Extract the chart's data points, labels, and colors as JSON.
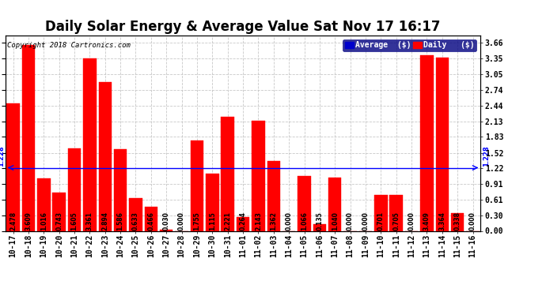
{
  "title": "Daily Solar Energy & Average Value Sat Nov 17 16:17",
  "copyright": "Copyright 2018 Cartronics.com",
  "categories": [
    "10-17",
    "10-18",
    "10-19",
    "10-20",
    "10-21",
    "10-22",
    "10-23",
    "10-24",
    "10-25",
    "10-26",
    "10-27",
    "10-28",
    "10-29",
    "10-30",
    "10-31",
    "11-01",
    "11-02",
    "11-03",
    "11-04",
    "11-05",
    "11-06",
    "11-07",
    "11-08",
    "11-09",
    "11-10",
    "11-11",
    "11-12",
    "11-13",
    "11-14",
    "11-15",
    "11-16"
  ],
  "values": [
    2.478,
    3.609,
    1.016,
    0.743,
    1.605,
    3.361,
    2.894,
    1.586,
    0.633,
    0.466,
    0.03,
    0.0,
    1.755,
    1.115,
    2.221,
    0.264,
    2.143,
    1.362,
    0.0,
    1.066,
    0.135,
    1.04,
    0.0,
    0.0,
    0.701,
    0.705,
    0.0,
    3.409,
    3.364,
    0.338,
    0.0
  ],
  "average": 1.228,
  "bar_color": "#ff0000",
  "avg_line_color": "#0000ff",
  "background_color": "#ffffff",
  "grid_color": "#bbbbbb",
  "title_fontsize": 12,
  "tick_label_fontsize": 7,
  "value_label_fontsize": 5.5,
  "yticks": [
    0.0,
    0.3,
    0.61,
    0.91,
    1.22,
    1.52,
    1.83,
    2.13,
    2.44,
    2.74,
    3.05,
    3.35,
    3.66
  ],
  "ylim": [
    0,
    3.8
  ],
  "legend_avg_color": "#0000cc",
  "legend_daily_color": "#ff0000",
  "legend_avg_text": "Average  ($)",
  "legend_daily_text": "Daily   ($)"
}
